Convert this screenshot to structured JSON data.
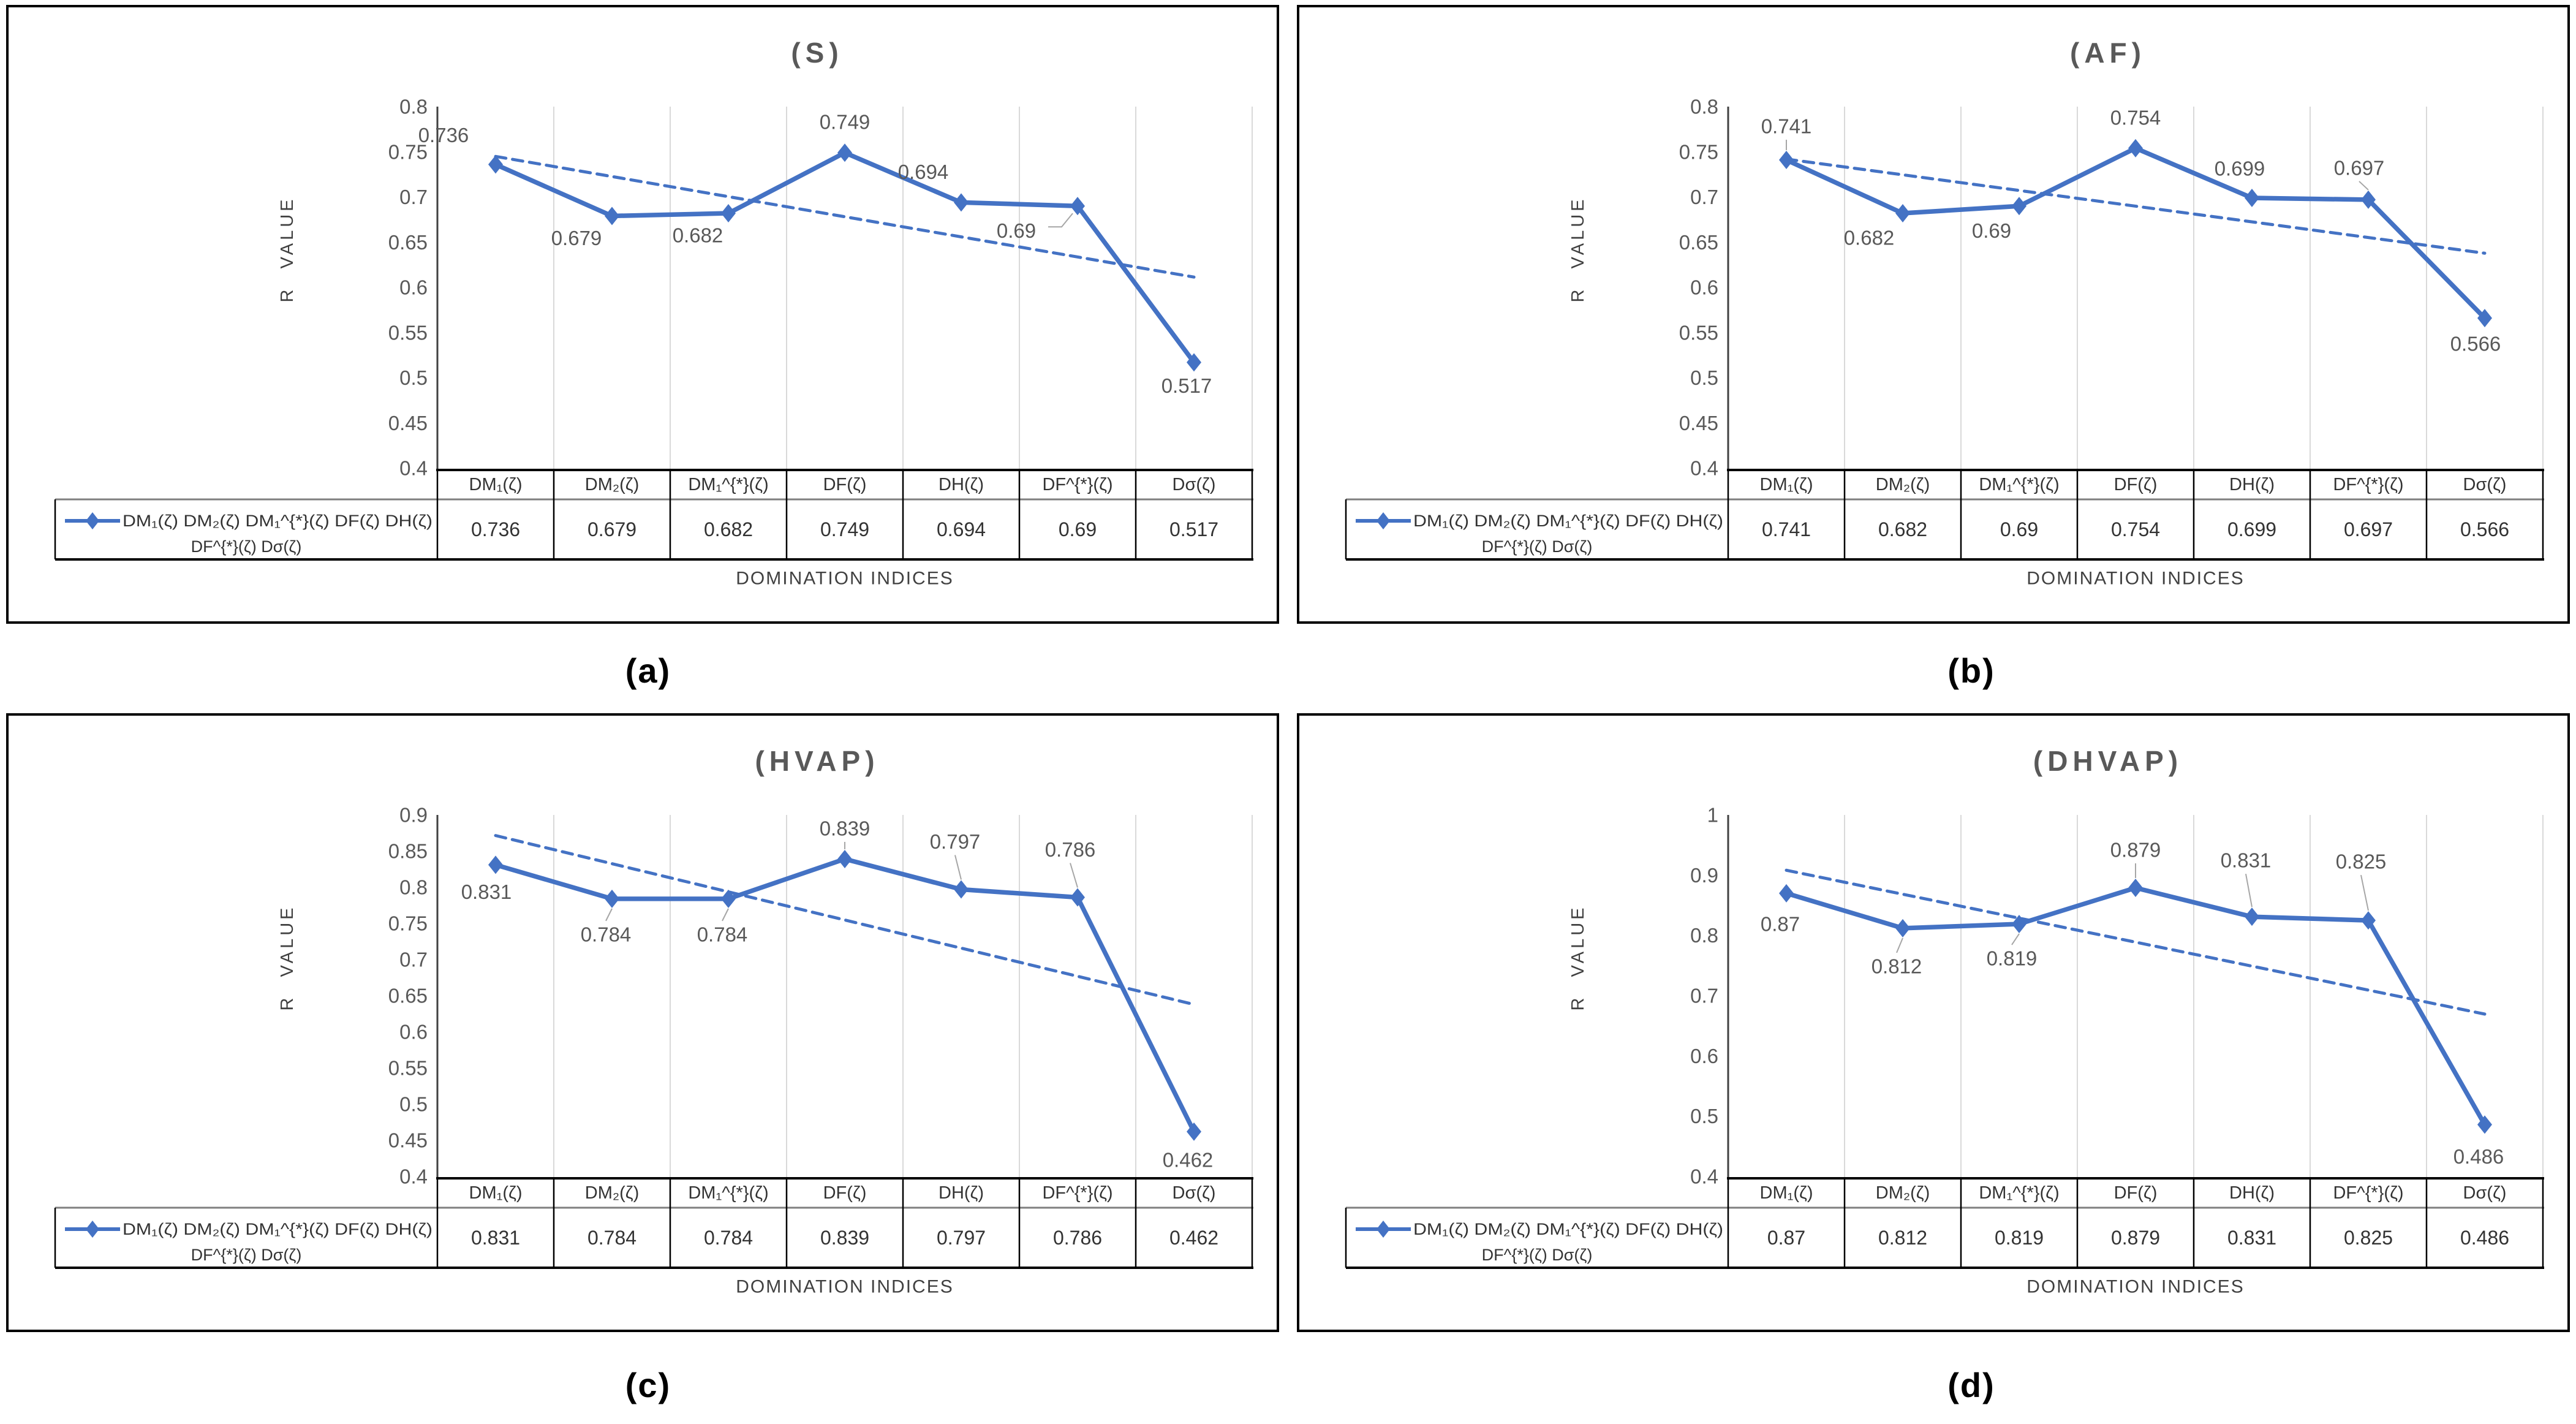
{
  "figure": {
    "xlabel": "DOMINATION INDICES",
    "ylabel": "R VALUE",
    "legend_series_label": "DM₁(ζ) DM₂(ζ) DM₁^{*}(ζ) DF(ζ) DH(ζ) DF^{*}(ζ) Dσ(ζ)",
    "legend_line1": "DM₁(ζ) DM₂(ζ) DM₁^{*}(ζ) DF(ζ) DH(ζ)",
    "legend_line2": "DF^{*}(ζ) Dσ(ζ)"
  },
  "colors": {
    "series_blue": "#4472C4",
    "trendline_blue": "#4472C4",
    "grid_gray": "#D9D9D9",
    "axis_line": "#404040",
    "tick_text": "#595959",
    "data_label_text": "#595959",
    "title_text": "#595959",
    "table_text": "#333333",
    "table_border": "#000000",
    "divider_gray": "#7F7F7F",
    "leader_gray": "#A6A6A6",
    "caption_text": "#000000",
    "panel_border": "#000000",
    "background": "#FFFFFF"
  },
  "chart_data": [
    {
      "id": "a",
      "type": "line",
      "title": "(S)",
      "caption": "(a)",
      "categories": [
        "DM₁(ζ)",
        "DM₂(ζ)",
        "DM₁^{*}(ζ)",
        "DF(ζ)",
        "DH(ζ)",
        "DF^{*}(ζ)",
        "Dσ(ζ)"
      ],
      "values": [
        0.736,
        0.679,
        0.682,
        0.749,
        0.694,
        0.69,
        0.517
      ],
      "value_labels": [
        "0.736",
        "0.679",
        "0.682",
        "0.749",
        "0.694",
        "0.69",
        "0.517"
      ],
      "ylim": [
        0.4,
        0.8
      ],
      "yticks": [
        "0.8",
        "0.75",
        "0.7",
        "0.65",
        "0.6",
        "0.55",
        "0.5",
        "0.45",
        "0.4"
      ],
      "grid": "vertical-only",
      "trendline": "linear-dashed",
      "legend_position": "table-left",
      "label_layout": [
        [
          -85,
          -48,
          null
        ],
        [
          -58,
          36,
          null
        ],
        [
          -50,
          36,
          null
        ],
        [
          0,
          -50,
          null
        ],
        [
          -62,
          -50,
          null
        ],
        [
          -100,
          40,
          "bent"
        ],
        [
          -12,
          38,
          null
        ]
      ]
    },
    {
      "id": "b",
      "type": "line",
      "title": "(AF)",
      "caption": "(b)",
      "categories": [
        "DM₁(ζ)",
        "DM₂(ζ)",
        "DM₁^{*}(ζ)",
        "DF(ζ)",
        "DH(ζ)",
        "DF^{*}(ζ)",
        "Dσ(ζ)"
      ],
      "values": [
        0.741,
        0.682,
        0.69,
        0.754,
        0.699,
        0.697,
        0.566
      ],
      "value_labels": [
        "0.741",
        "0.682",
        "0.69",
        "0.754",
        "0.699",
        "0.697",
        "0.566"
      ],
      "ylim": [
        0.4,
        0.8
      ],
      "yticks": [
        "0.8",
        "0.75",
        "0.7",
        "0.65",
        "0.6",
        "0.55",
        "0.5",
        "0.45",
        "0.4"
      ],
      "grid": "vertical-only",
      "trendline": "linear-dashed",
      "legend_position": "table-left",
      "label_layout": [
        [
          0,
          -55,
          "v"
        ],
        [
          -55,
          40,
          null
        ],
        [
          -45,
          40,
          null
        ],
        [
          0,
          -50,
          null
        ],
        [
          -20,
          -48,
          null
        ],
        [
          -15,
          -52,
          "v"
        ],
        [
          -15,
          42,
          null
        ]
      ]
    },
    {
      "id": "c",
      "type": "line",
      "title": "(HVAP)",
      "caption": "(c)",
      "categories": [
        "DM₁(ζ)",
        "DM₂(ζ)",
        "DM₁^{*}(ζ)",
        "DF(ζ)",
        "DH(ζ)",
        "DF^{*}(ζ)",
        "Dσ(ζ)"
      ],
      "values": [
        0.831,
        0.784,
        0.784,
        0.839,
        0.797,
        0.786,
        0.462
      ],
      "value_labels": [
        "0.831",
        "0.784",
        "0.784",
        "0.839",
        "0.797",
        "0.786",
        "0.462"
      ],
      "ylim": [
        0.4,
        0.9
      ],
      "yticks": [
        "0.9",
        "0.85",
        "0.8",
        "0.75",
        "0.7",
        "0.65",
        "0.6",
        "0.55",
        "0.5",
        "0.45",
        "0.4"
      ],
      "grid": "vertical-only",
      "trendline": "linear-dashed",
      "legend_position": "table-left",
      "label_layout": [
        [
          -15,
          44,
          null
        ],
        [
          -10,
          58,
          "v"
        ],
        [
          -10,
          58,
          "v"
        ],
        [
          0,
          -50,
          "v"
        ],
        [
          -10,
          -78,
          "v"
        ],
        [
          -12,
          -78,
          "v"
        ],
        [
          -10,
          46,
          null
        ]
      ]
    },
    {
      "id": "d",
      "type": "line",
      "title": "(DHVAP)",
      "caption": "(d)",
      "categories": [
        "DM₁(ζ)",
        "DM₂(ζ)",
        "DM₁^{*}(ζ)",
        "DF(ζ)",
        "DH(ζ)",
        "DF^{*}(ζ)",
        "Dσ(ζ)"
      ],
      "values": [
        0.87,
        0.812,
        0.819,
        0.879,
        0.831,
        0.825,
        0.486
      ],
      "value_labels": [
        "0.87",
        "0.812",
        "0.819",
        "0.879",
        "0.831",
        "0.825",
        "0.486"
      ],
      "ylim": [
        0.4,
        1.0
      ],
      "yticks": [
        "1",
        "0.9",
        "0.8",
        "0.7",
        "0.6",
        "0.5",
        "0.4"
      ],
      "grid": "vertical-only",
      "trendline": "linear-dashed",
      "legend_position": "table-left",
      "label_layout": [
        [
          -10,
          50,
          null
        ],
        [
          -10,
          62,
          "v"
        ],
        [
          -12,
          56,
          "v"
        ],
        [
          0,
          -62,
          "v"
        ],
        [
          -10,
          -92,
          "v"
        ],
        [
          -12,
          -96,
          "v"
        ],
        [
          -10,
          52,
          null
        ]
      ]
    }
  ]
}
